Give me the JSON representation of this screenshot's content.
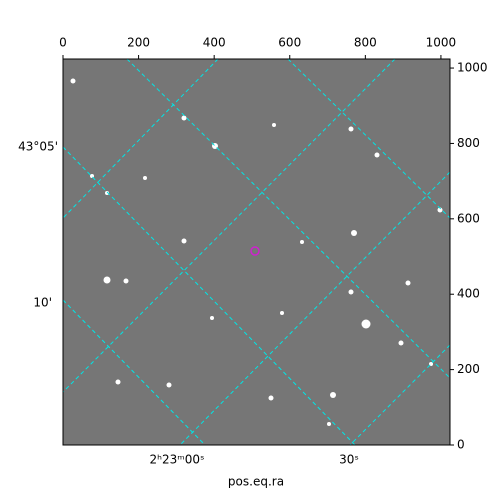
{
  "chart_data": {
    "type": "image",
    "xlabel": "pos.eq.ra",
    "xlim": [
      0,
      1024
    ],
    "ylim": [
      0,
      1024
    ],
    "xticks": [
      0,
      200,
      400,
      600,
      800,
      1000
    ],
    "yticks": [
      0,
      200,
      400,
      600,
      800,
      1000
    ],
    "dec_ticks": [
      "43°05'",
      "10'"
    ],
    "ra_ticks": [
      "2ʰ23ᵐ00ˢ",
      "30ˢ"
    ],
    "grid_color": "#00e5e5",
    "marker_color": "#d020d0"
  }
}
